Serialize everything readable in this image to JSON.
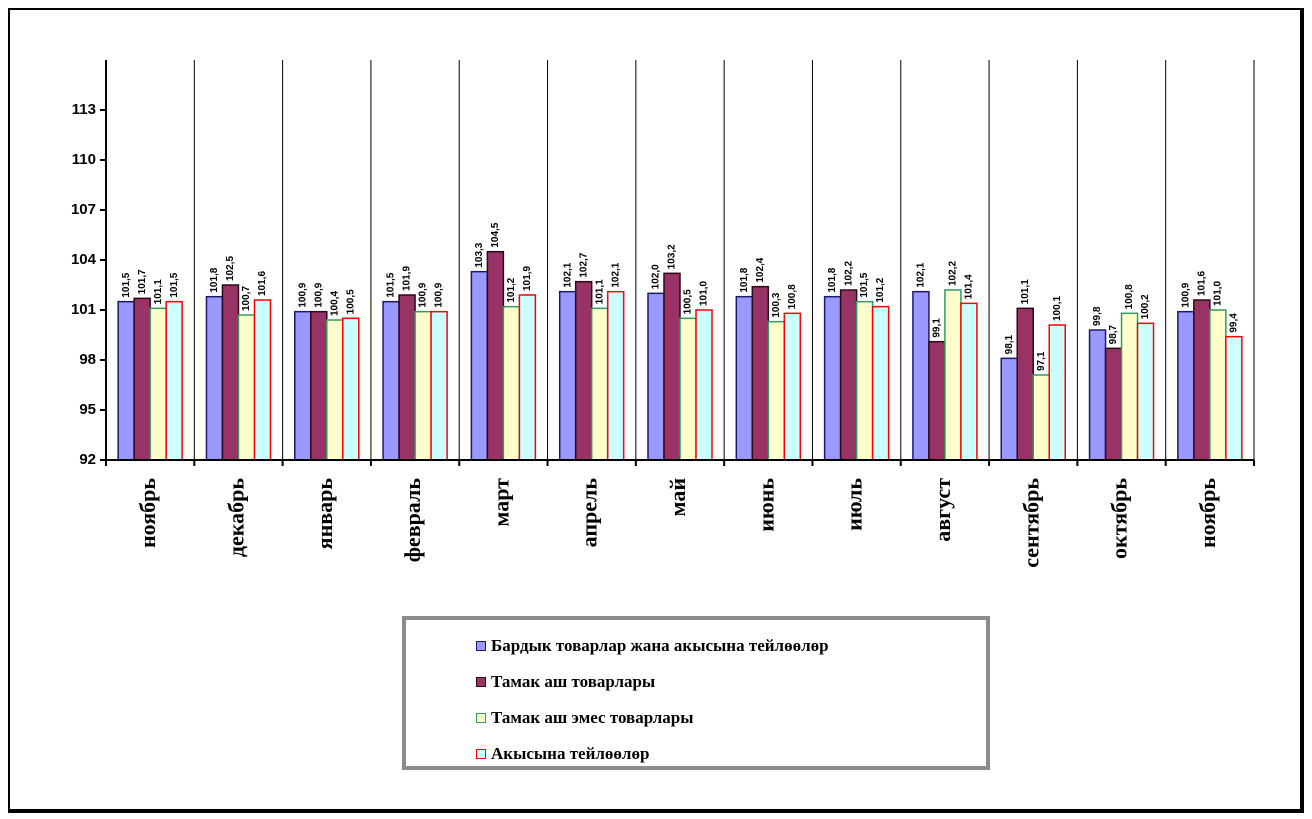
{
  "chart_data": {
    "type": "bar",
    "title": "",
    "xlabel": "",
    "ylabel": "",
    "ylim": [
      92,
      113
    ],
    "yticks": [
      92,
      95,
      98,
      101,
      104,
      107,
      110,
      113
    ],
    "ytick_labels": [
      "92",
      "95",
      "98",
      "101",
      "104",
      "107",
      "110",
      "113"
    ],
    "grid": "vertical category separators",
    "legend_position": "bottom-center",
    "categories": [
      "ноябрь",
      "декабрь",
      "январь",
      "февраль",
      "март",
      "апрель",
      "май",
      "июнь",
      "июль",
      "август",
      "сентябрь",
      "октябрь",
      "ноябрь"
    ],
    "series": [
      {
        "name": "Бардык товарлар жана акысына тейлөөлөр",
        "fill": "#9999ff",
        "stroke": "#1a1a66",
        "values": [
          101.5,
          101.8,
          100.9,
          101.5,
          103.3,
          102.1,
          102.0,
          101.8,
          101.8,
          102.1,
          98.1,
          99.8,
          100.9
        ],
        "labels": [
          "101,5",
          "101,8",
          "100,9",
          "101,5",
          "103,3",
          "102,1",
          "102,0",
          "101,8",
          "101,8",
          "102,1",
          "98,1",
          "99,8",
          "100,9"
        ]
      },
      {
        "name": "Тамак аш товарлары",
        "fill": "#993366",
        "stroke": "#2a0a1a",
        "values": [
          101.7,
          102.5,
          100.9,
          101.9,
          104.5,
          102.7,
          103.2,
          102.4,
          102.2,
          99.1,
          101.1,
          98.7,
          101.6
        ],
        "labels": [
          "101,7",
          "102,5",
          "100,9",
          "101,9",
          "104,5",
          "102,7",
          "103,2",
          "102,4",
          "102,2",
          "99,1",
          "101,1",
          "98,7",
          "101,6"
        ]
      },
      {
        "name": "Тамак аш эмес товарлары",
        "fill": "#ffffcc",
        "stroke": "#339966",
        "values": [
          101.1,
          100.7,
          100.4,
          100.9,
          101.2,
          101.1,
          100.5,
          100.3,
          101.5,
          102.2,
          97.1,
          100.8,
          101.0
        ],
        "labels": [
          "101,1",
          "100,7",
          "100,4",
          "100,9",
          "101,2",
          "101,1",
          "100,5",
          "100,3",
          "101,5",
          "102,2",
          "97,1",
          "100,8",
          "101,0"
        ]
      },
      {
        "name": "Акысына тейлөөлөр",
        "fill": "#ccffff",
        "stroke": "#ff0000",
        "values": [
          101.5,
          101.6,
          100.5,
          100.9,
          101.9,
          102.1,
          101.0,
          100.8,
          101.2,
          101.4,
          100.1,
          100.2,
          99.4
        ],
        "labels": [
          "101,5",
          "101,6",
          "100,5",
          "100,9",
          "101,9",
          "102,1",
          "101,0",
          "100,8",
          "101,2",
          "101,4",
          "100,1",
          "100,2",
          "99,4"
        ]
      }
    ]
  }
}
